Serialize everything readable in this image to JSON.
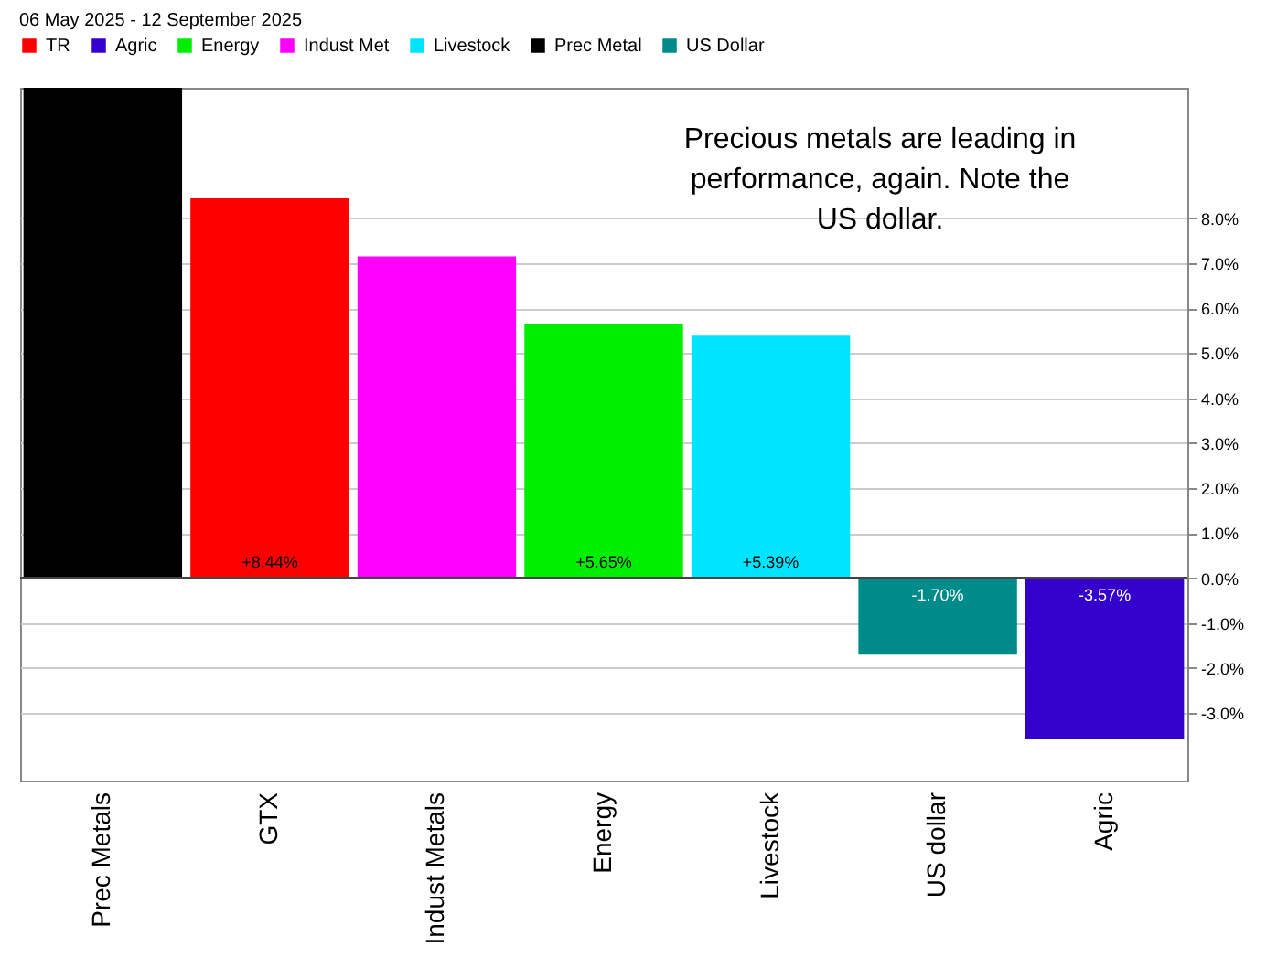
{
  "chart_data": {
    "type": "bar",
    "subtitle": "06 May 2025 - 12 September 2025",
    "categories": [
      "Prec Metals",
      "GTX",
      "Indust Metals",
      "Energy",
      "Livestock",
      "US dollar",
      "Agric"
    ],
    "series": [
      {
        "name": "TR",
        "color": "#ff0000",
        "values": [
          null,
          8.44,
          null,
          null,
          null,
          null,
          null
        ],
        "value_labels": [
          null,
          "+8.44%",
          null,
          null,
          null,
          null,
          null
        ]
      },
      {
        "name": "Agric",
        "color": "#3300cc",
        "values": [
          null,
          null,
          null,
          null,
          null,
          null,
          -3.57
        ],
        "value_labels": [
          null,
          null,
          null,
          null,
          null,
          null,
          "-3.57%"
        ]
      },
      {
        "name": "Energy",
        "color": "#00ee00",
        "values": [
          null,
          null,
          null,
          5.65,
          null,
          null,
          null
        ],
        "value_labels": [
          null,
          null,
          null,
          "+5.65%",
          null,
          null,
          null
        ]
      },
      {
        "name": "Indust Met",
        "color": "#ff00ff",
        "values": [
          null,
          null,
          7.15,
          null,
          null,
          null,
          null
        ],
        "value_labels": [
          null,
          null,
          null,
          null,
          null,
          null,
          null
        ]
      },
      {
        "name": "Livestock",
        "color": "#00e5ff",
        "values": [
          null,
          null,
          null,
          null,
          5.39,
          null,
          null
        ],
        "value_labels": [
          null,
          null,
          null,
          null,
          "+5.39%",
          null,
          null
        ]
      },
      {
        "name": "Prec Metal",
        "color": "#000000",
        "values": [
          10.9,
          null,
          null,
          null,
          null,
          null,
          null
        ],
        "value_labels": [
          null,
          null,
          null,
          null,
          null,
          null,
          null
        ]
      },
      {
        "name": "US Dollar",
        "color": "#008b8b",
        "values": [
          null,
          null,
          null,
          null,
          null,
          -1.7,
          null
        ],
        "value_labels": [
          null,
          null,
          null,
          null,
          null,
          "-1.70%",
          null
        ]
      }
    ],
    "ylim": [
      -4.5,
      10.9
    ],
    "yticks": [
      {
        "value": -3,
        "label": "-3.0%"
      },
      {
        "value": -2,
        "label": "-2.0%"
      },
      {
        "value": -1,
        "label": "-1.0%"
      },
      {
        "value": 0,
        "label": "0.0%"
      },
      {
        "value": 1,
        "label": "1.0%"
      },
      {
        "value": 2,
        "label": "2.0%"
      },
      {
        "value": 3,
        "label": "3.0%"
      },
      {
        "value": 4,
        "label": "4.0%"
      },
      {
        "value": 5,
        "label": "5.0%"
      },
      {
        "value": 6,
        "label": "6.0%"
      },
      {
        "value": 7,
        "label": "7.0%"
      },
      {
        "value": 8,
        "label": "8.0%"
      }
    ],
    "grid": "y",
    "legend": "top left",
    "annotations": [
      "Precious metals are leading in performance, again.  Note the US dollar."
    ]
  }
}
